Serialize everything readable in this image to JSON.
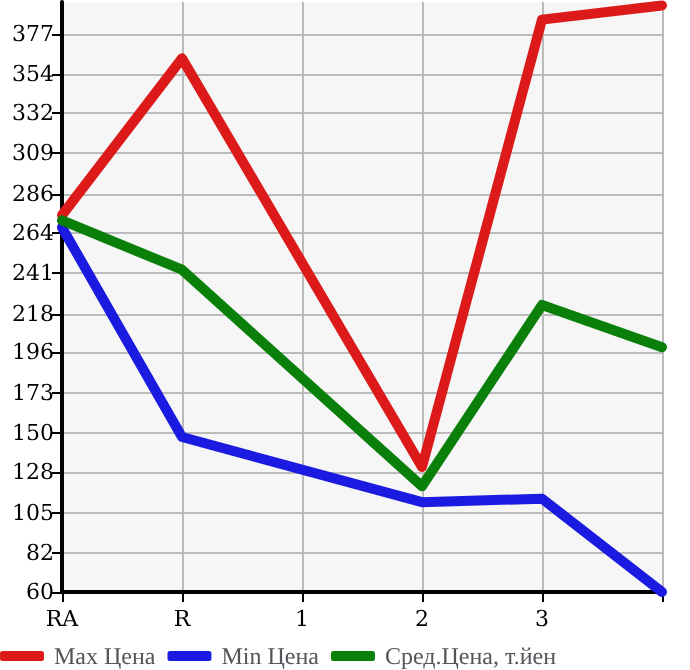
{
  "chart_data": {
    "type": "line",
    "categories": [
      "RA",
      "R",
      "1",
      "2",
      "3",
      null
    ],
    "series": [
      {
        "name": "Max Цена",
        "color": "#dd1a1a",
        "values": [
          274,
          363,
          null,
          131,
          385,
          393
        ]
      },
      {
        "name": "Min Цена",
        "color": "#1a1ae0",
        "values": [
          267,
          148,
          null,
          111,
          113,
          60
        ]
      },
      {
        "name": "Сред.Цена, т.йен",
        "color": "#0a800a",
        "values": [
          271,
          243,
          null,
          120,
          223,
          199
        ]
      }
    ],
    "ylim": [
      60,
      395
    ],
    "yticks": [
      60,
      82,
      105,
      128,
      150,
      173,
      196,
      218,
      241,
      264,
      286,
      309,
      332,
      354,
      377
    ],
    "grid": true,
    "legend": "bottom",
    "marker": "none",
    "line_style": "solid"
  }
}
